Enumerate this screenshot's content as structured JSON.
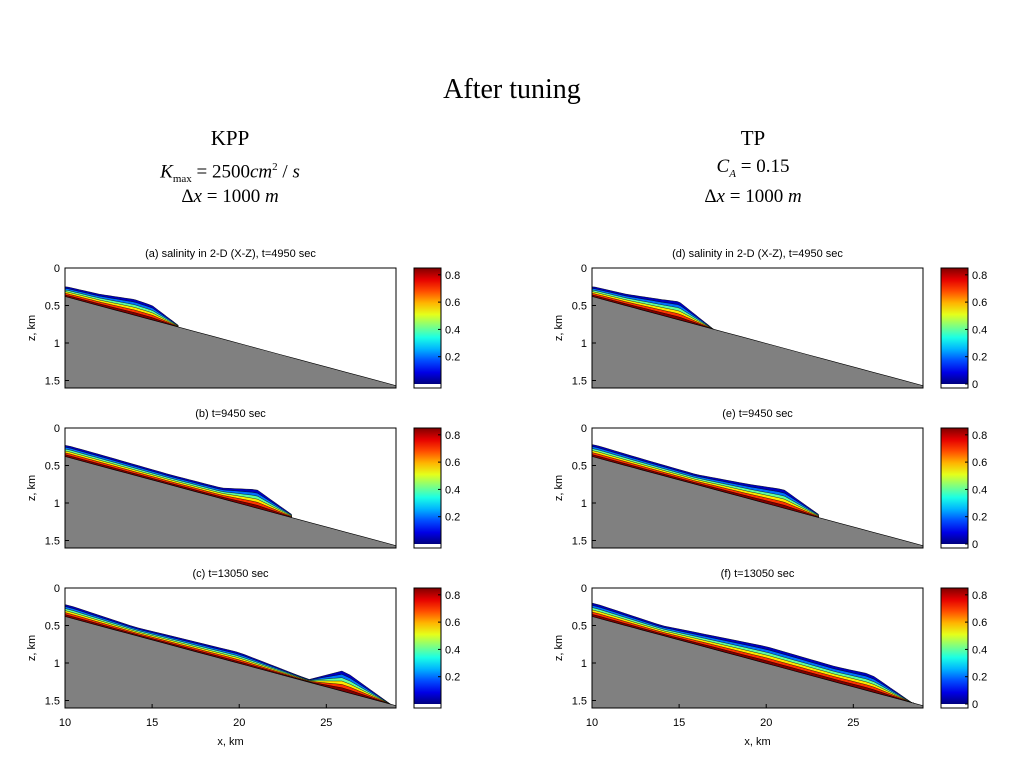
{
  "slide": {
    "title": "After tuning",
    "left_header": {
      "name": "KPP",
      "line1": "K_max = 2500cm² / s",
      "line2": "Δx = 1000 m"
    },
    "right_header": {
      "name": "TP",
      "line1": "C_A = 0.15",
      "line2": "Δx = 1000 m"
    }
  },
  "chart_data": [
    {
      "type": "contour",
      "title": "(a) salinity in 2-D (X-Z), t=4950 sec",
      "ylabel": "z, km",
      "xlabel": "",
      "xlim": [
        10,
        29
      ],
      "ylim": [
        1.6,
        0
      ],
      "yticks": [
        "0",
        "0.5",
        "1",
        "1.5"
      ],
      "xticks": [],
      "colorbar_ticks": [
        "0.2",
        "0.4",
        "0.6",
        "0.8"
      ],
      "colorbar_range": [
        0,
        0.85
      ],
      "plume_front_km": 16.5,
      "plume_top_z": [
        [
          10.1,
          0.25
        ],
        [
          12,
          0.35
        ],
        [
          14,
          0.42
        ],
        [
          15,
          0.5
        ],
        [
          16.6,
          0.78
        ]
      ]
    },
    {
      "type": "contour",
      "title": "(b) t=9450 sec",
      "ylabel": "z, km",
      "xlabel": "",
      "xlim": [
        10,
        29
      ],
      "ylim": [
        1.6,
        0
      ],
      "yticks": [
        "0",
        "0.5",
        "1",
        "1.5"
      ],
      "xticks": [],
      "colorbar_ticks": [
        "0.2",
        "0.4",
        "0.6",
        "0.8"
      ],
      "colorbar_range": [
        0,
        0.85
      ],
      "plume_front_km": 23,
      "plume_top_z": [
        [
          10.1,
          0.23
        ],
        [
          13,
          0.42
        ],
        [
          16,
          0.62
        ],
        [
          19,
          0.8
        ],
        [
          21,
          0.82
        ],
        [
          23,
          1.15
        ]
      ]
    },
    {
      "type": "contour",
      "title": "(c) t=13050 sec",
      "ylabel": "z, km",
      "xlabel": "x, km",
      "xlim": [
        10,
        29
      ],
      "ylim": [
        1.6,
        0
      ],
      "yticks": [
        "0",
        "0.5",
        "1",
        "1.5"
      ],
      "xticks": [
        "10",
        "15",
        "20",
        "25"
      ],
      "colorbar_ticks": [
        "0.2",
        "0.4",
        "0.6",
        "0.8"
      ],
      "colorbar_range": [
        0,
        0.85
      ],
      "plume_front_km": 28.7,
      "plume_top_z": [
        [
          10.1,
          0.22
        ],
        [
          14,
          0.52
        ],
        [
          20,
          0.86
        ],
        [
          24,
          1.22
        ],
        [
          26,
          1.1
        ],
        [
          28.7,
          1.55
        ]
      ]
    },
    {
      "type": "contour",
      "title": "(d) salinity in 2-D (X-Z), t=4950 sec",
      "ylabel": "z, km",
      "xlabel": "",
      "xlim": [
        10,
        29
      ],
      "ylim": [
        1.6,
        0
      ],
      "yticks": [
        "0",
        "0.5",
        "1",
        "1.5"
      ],
      "xticks": [],
      "colorbar_ticks": [
        "0",
        "0.2",
        "0.4",
        "0.6",
        "0.8"
      ],
      "colorbar_range": [
        0,
        0.85
      ],
      "plume_front_km": 17,
      "plume_top_z": [
        [
          10.1,
          0.25
        ],
        [
          12,
          0.35
        ],
        [
          14,
          0.42
        ],
        [
          15,
          0.45
        ],
        [
          17,
          0.82
        ]
      ]
    },
    {
      "type": "contour",
      "title": "(e) t=9450 sec",
      "ylabel": "z, km",
      "xlabel": "",
      "xlim": [
        10,
        29
      ],
      "ylim": [
        1.6,
        0
      ],
      "yticks": [
        "0",
        "0.5",
        "1",
        "1.5"
      ],
      "xticks": [],
      "colorbar_ticks": [
        "0",
        "0.2",
        "0.4",
        "0.6",
        "0.8"
      ],
      "colorbar_range": [
        0,
        0.85
      ],
      "plume_front_km": 23,
      "plume_top_z": [
        [
          10.1,
          0.22
        ],
        [
          13,
          0.42
        ],
        [
          16,
          0.62
        ],
        [
          19,
          0.75
        ],
        [
          21,
          0.82
        ],
        [
          23,
          1.15
        ]
      ]
    },
    {
      "type": "contour",
      "title": "(f) t=13050 sec",
      "ylabel": "z, km",
      "xlabel": "x, km",
      "xlim": [
        10,
        29
      ],
      "ylim": [
        1.6,
        0
      ],
      "yticks": [
        "0",
        "0.5",
        "1",
        "1.5"
      ],
      "xticks": [
        "10",
        "15",
        "20",
        "25"
      ],
      "colorbar_ticks": [
        "0",
        "0.2",
        "0.4",
        "0.6",
        "0.8"
      ],
      "colorbar_range": [
        0,
        0.85
      ],
      "plume_front_km": 28.5,
      "plume_top_z": [
        [
          10.1,
          0.2
        ],
        [
          14,
          0.5
        ],
        [
          20,
          0.78
        ],
        [
          24,
          1.05
        ],
        [
          26,
          1.15
        ],
        [
          28.5,
          1.55
        ]
      ]
    }
  ]
}
